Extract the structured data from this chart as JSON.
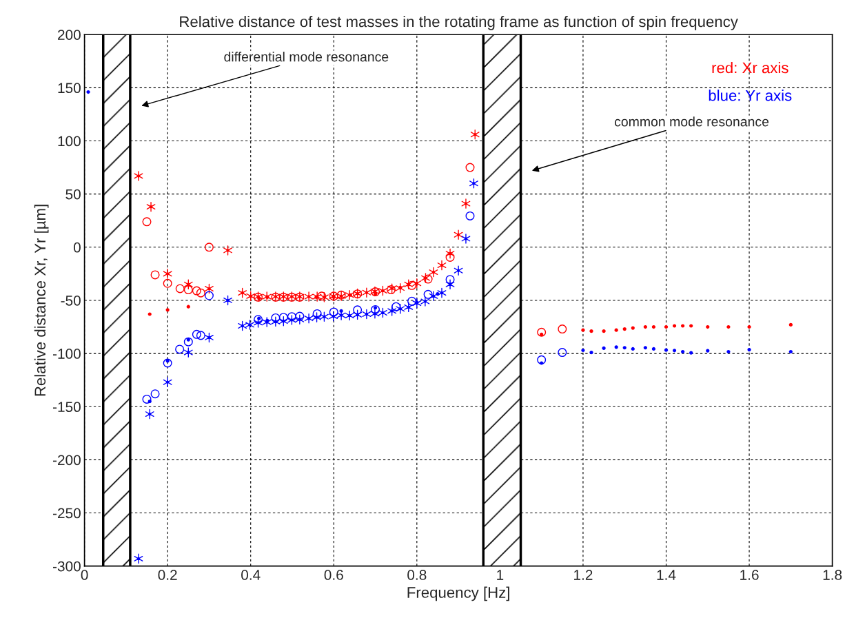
{
  "chart_data": {
    "type": "scatter",
    "title": "Relative distance of test masses in the rotating frame as function of spin frequency",
    "xlabel": "Frequency [Hz]",
    "ylabel": "Relative distance Xr, Yr [µm]",
    "xlim": [
      0,
      1.8
    ],
    "ylim": [
      -300,
      200
    ],
    "xticks": [
      0,
      0.2,
      0.4,
      0.6,
      0.8,
      1,
      1.2,
      1.4,
      1.6,
      1.8
    ],
    "yticks": [
      -300,
      -250,
      -200,
      -150,
      -100,
      -50,
      0,
      50,
      100,
      150,
      200
    ],
    "grid": true,
    "bands": [
      {
        "axis": "x",
        "from": 0.045,
        "to": 0.11
      },
      {
        "axis": "x",
        "from": 0.96,
        "to": 1.05
      }
    ],
    "annotations": [
      "red: Xr axis",
      "blue: Yr axis",
      "differential mode resonance",
      "common mode resonance"
    ],
    "series": [
      {
        "color": "#ff0000",
        "marker": "star",
        "x": [
          0.13,
          0.16,
          0.2,
          0.25,
          0.3,
          0.345,
          0.38,
          0.4,
          0.418,
          0.439,
          0.46,
          0.479,
          0.499,
          0.518,
          0.54,
          0.56,
          0.577,
          0.599,
          0.618,
          0.638,
          0.657,
          0.679,
          0.699,
          0.718,
          0.74,
          0.76,
          0.78,
          0.8,
          0.821,
          0.84,
          0.86,
          0.88,
          0.9,
          0.918,
          0.94
        ],
        "values": [
          67,
          38,
          -25,
          -35,
          -39,
          -3,
          -43,
          -46,
          -46.5,
          -46.5,
          -46.5,
          -46.5,
          -46.5,
          -46.5,
          -46.5,
          -46.5,
          -47,
          -46,
          -46,
          -45,
          -43.6,
          -42.7,
          -41.6,
          -41,
          -38.8,
          -38.5,
          -35,
          -34,
          -29,
          -23.5,
          -17,
          -6,
          11.7,
          41,
          106
        ]
      },
      {
        "color": "#ff0000",
        "marker": "circle",
        "x": [
          0.15,
          0.17,
          0.2,
          0.23,
          0.25,
          0.27,
          0.28,
          0.3,
          0.418,
          0.46,
          0.479,
          0.499,
          0.518,
          0.571,
          0.6,
          0.618,
          0.657,
          0.7,
          0.738,
          0.788,
          0.827,
          0.88,
          0.928,
          1.1,
          1.15
        ],
        "values": [
          24,
          -26,
          -34,
          -39,
          -40,
          -41,
          -43,
          0,
          -47,
          -47,
          -47,
          -47,
          -47,
          -46,
          -46,
          -45,
          -44,
          -42,
          -40,
          -36,
          -30,
          -9.5,
          75,
          -80,
          -77
        ]
      },
      {
        "color": "#ff0000",
        "marker": "point",
        "x": [
          0.157,
          0.2,
          0.25,
          0.42,
          0.44,
          0.558,
          0.6,
          0.64,
          0.7,
          0.76,
          1.1,
          1.2,
          1.22,
          1.25,
          1.28,
          1.3,
          1.32,
          1.35,
          1.37,
          1.4,
          1.42,
          1.44,
          1.46,
          1.5,
          1.55,
          1.6,
          1.7
        ],
        "values": [
          -63,
          -59,
          -56,
          -48,
          -47,
          -47,
          -47,
          -45,
          -44,
          -38,
          -82,
          -78,
          -79,
          -79,
          -78,
          -77,
          -76,
          -75,
          -75,
          -75,
          -74,
          -74,
          -74,
          -75,
          -75,
          -75,
          -73
        ]
      },
      {
        "color": "#0000ff",
        "marker": "star",
        "x": [
          0.13,
          0.157,
          0.2,
          0.25,
          0.3,
          0.345,
          0.38,
          0.398,
          0.418,
          0.439,
          0.46,
          0.479,
          0.499,
          0.518,
          0.54,
          0.559,
          0.577,
          0.599,
          0.618,
          0.638,
          0.657,
          0.679,
          0.699,
          0.718,
          0.74,
          0.76,
          0.78,
          0.8,
          0.82,
          0.84,
          0.86,
          0.88,
          0.9,
          0.918,
          0.937
        ],
        "values": [
          -293,
          -157,
          -127,
          -99,
          -85,
          -50,
          -74,
          -73,
          -71,
          -70.5,
          -70,
          -69.6,
          -68.5,
          -68,
          -67,
          -66,
          -65.4,
          -65,
          -64,
          -64.3,
          -63.5,
          -63,
          -62.5,
          -61.7,
          -60,
          -58,
          -56.4,
          -52.7,
          -51,
          -46,
          -43,
          -35,
          -22,
          8,
          60
        ]
      },
      {
        "color": "#0000ff",
        "marker": "circle",
        "x": [
          0.15,
          0.17,
          0.2,
          0.229,
          0.25,
          0.27,
          0.28,
          0.3,
          0.418,
          0.46,
          0.479,
          0.499,
          0.518,
          0.56,
          0.6,
          0.657,
          0.7,
          0.75,
          0.788,
          0.827,
          0.88,
          0.928,
          1.1,
          1.15
        ],
        "values": [
          -143,
          -138,
          -109,
          -96,
          -89,
          -82,
          -83,
          -45.5,
          -68,
          -66.5,
          -66,
          -65.4,
          -65,
          -62.6,
          -61,
          -59,
          -58.7,
          -56,
          -50.8,
          -44.4,
          -30.4,
          29.4,
          -106,
          -99
        ]
      },
      {
        "color": "#0000ff",
        "marker": "point",
        "x": [
          0.009,
          0.157,
          0.2,
          0.25,
          0.42,
          0.44,
          0.618,
          0.7,
          0.8,
          0.85,
          1.1,
          1.2,
          1.22,
          1.25,
          1.28,
          1.3,
          1.32,
          1.35,
          1.37,
          1.4,
          1.42,
          1.44,
          1.46,
          1.5,
          1.55,
          1.6,
          1.7
        ],
        "values": [
          146,
          -145,
          -107,
          -87,
          -67,
          -69,
          -60,
          -57,
          -52,
          -44,
          -109,
          -97,
          -99,
          -95,
          -94,
          -94.6,
          -95.7,
          -94.6,
          -95.7,
          -96.8,
          -97.2,
          -98.3,
          -99.4,
          -97.4,
          -98.3,
          -96.4,
          -98.3
        ]
      }
    ]
  }
}
